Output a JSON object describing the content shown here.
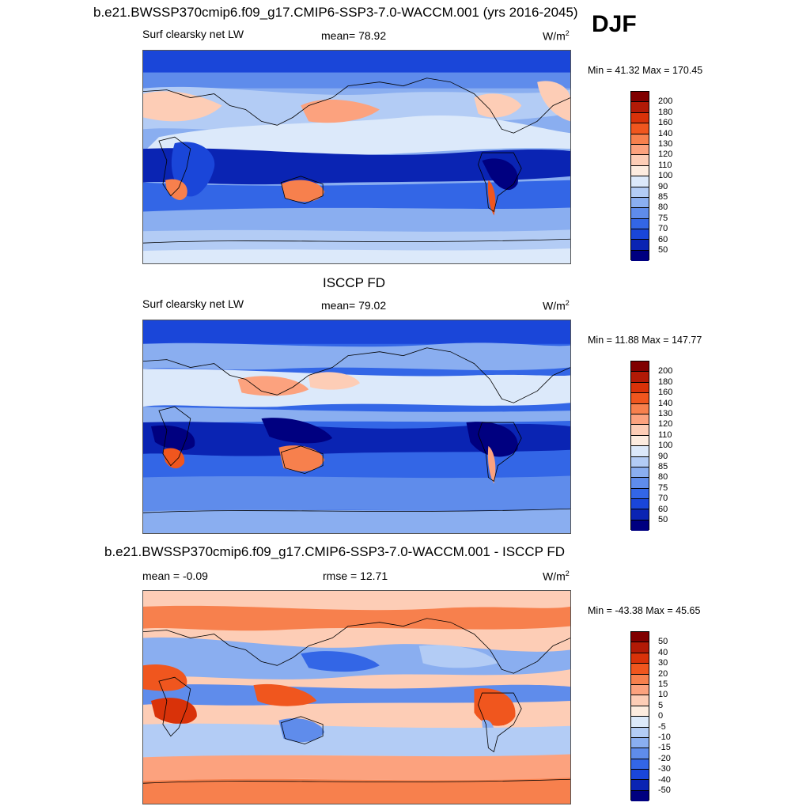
{
  "season": "DJF",
  "panels": [
    {
      "title": "b.e21.BWSSP370cmip6.f09_g17.CMIP6-SSP3-7.0-WACCM.001 (yrs 2016-2045)",
      "left_label": "Surf clearsky net LW",
      "center_label": "mean=  78.92",
      "units": "W/m",
      "units_sup": "2",
      "minmax": "Min =  41.32 Max = 170.45",
      "ticks": [
        "200",
        "180",
        "160",
        "140",
        "130",
        "120",
        "110",
        "100",
        "90",
        "85",
        "80",
        "75",
        "70",
        "60",
        "50"
      ]
    },
    {
      "title": "ISCCP FD",
      "left_label": "Surf clearsky net LW",
      "center_label": "mean=  79.02",
      "units": "W/m",
      "units_sup": "2",
      "minmax": "Min =  11.88 Max = 147.77",
      "ticks": [
        "200",
        "180",
        "160",
        "140",
        "130",
        "120",
        "110",
        "100",
        "90",
        "85",
        "80",
        "75",
        "70",
        "60",
        "50"
      ]
    },
    {
      "title": "b.e21.BWSSP370cmip6.f09_g17.CMIP6-SSP3-7.0-WACCM.001 - ISCCP FD",
      "left_label": "mean =  -0.09",
      "center_label": "rmse =  12.71",
      "units": "W/m",
      "units_sup": "2",
      "minmax": "Min = -43.38 Max =  45.65",
      "ticks": [
        "50",
        "40",
        "30",
        "20",
        "15",
        "10",
        "5",
        "0",
        "-5",
        "-10",
        "-15",
        "-20",
        "-30",
        "-40",
        "-50"
      ]
    }
  ],
  "colors": {
    "colorbar": [
      "#800000",
      "#b21a06",
      "#d93209",
      "#f0561e",
      "#f7804d",
      "#fca27e",
      "#fdcdb6",
      "#fdecdf",
      "#dce9fa",
      "#b3ccf5",
      "#8aaef0",
      "#5f8ceb",
      "#3366e6",
      "#1a46d9",
      "#0a24b3",
      "#000080"
    ]
  }
}
